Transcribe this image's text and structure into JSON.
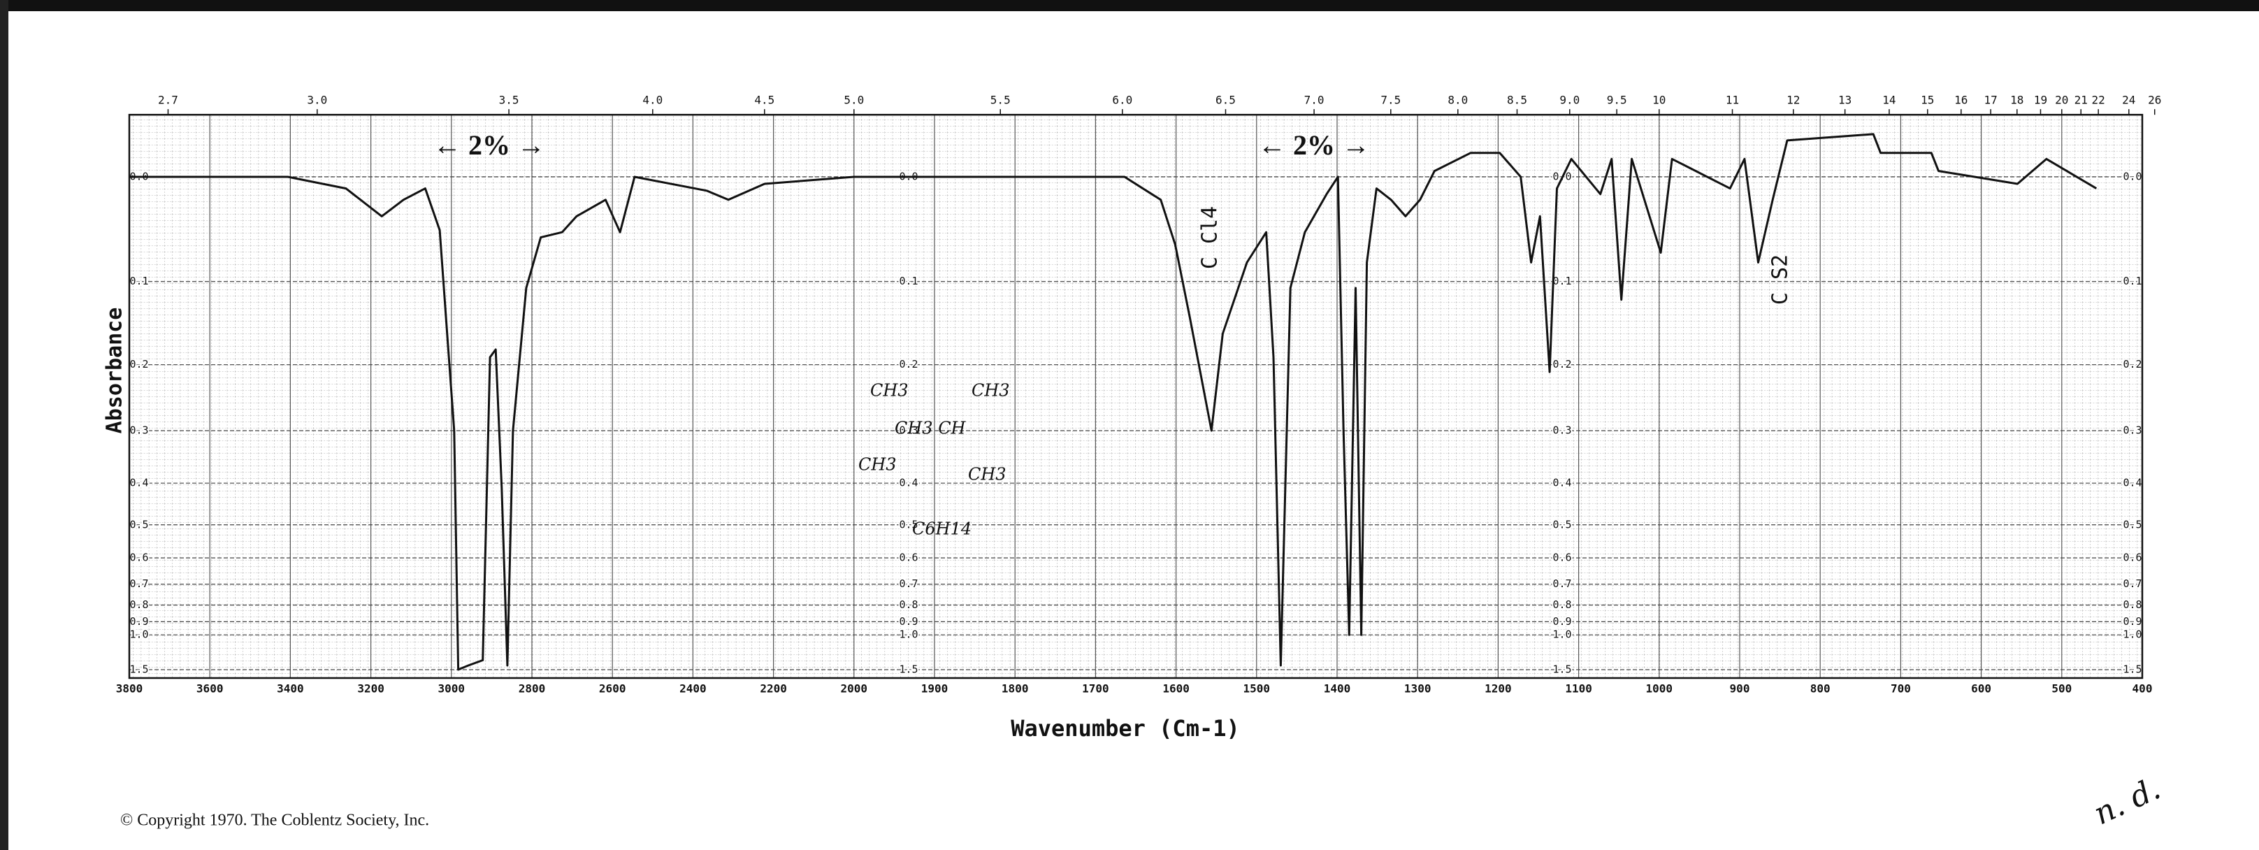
{
  "chart_data": {
    "type": "line",
    "y_label": "Absorbance",
    "x_label": "Wavenumber (Cm-1)",
    "y_scale": "absorbance",
    "x_scale": "tick-interpolated",
    "grid": true,
    "color": "#111111",
    "xlim": [
      3800,
      400
    ],
    "xticks": [
      3800,
      3600,
      3400,
      3200,
      3000,
      2800,
      2600,
      2400,
      2200,
      2000,
      1900,
      1800,
      1700,
      1600,
      1500,
      1400,
      1300,
      1200,
      1100,
      1000,
      900,
      800,
      700,
      600,
      500,
      400
    ],
    "x2ticks": [
      2.7,
      {
        "value": 3,
        "label": "3.0"
      },
      3.5,
      {
        "value": 4,
        "label": "4.0"
      },
      4.5,
      {
        "value": 5,
        "label": "5.0"
      },
      5.5,
      {
        "value": 6,
        "label": "6.0"
      },
      6.5,
      {
        "value": 7,
        "label": "7.0"
      },
      7.5,
      {
        "value": 8,
        "label": "8.0"
      },
      8.5,
      {
        "value": 9,
        "label": "9.0"
      },
      9.5,
      10,
      11,
      12,
      13,
      14,
      15,
      16,
      17,
      18,
      19,
      20,
      21,
      22,
      24,
      26
    ],
    "ylim": [
      -0.05,
      1.5
    ],
    "yticks": [
      {
        "value": 0,
        "label": "0.0"
      },
      0.1,
      0.2,
      0.3,
      0.4,
      0.5,
      0.6,
      0.7,
      0.8,
      0.9,
      {
        "value": 1,
        "label": "1.0"
      },
      1.5
    ],
    "x": [
      3800,
      3406,
      3262,
      3173,
      3119,
      3065,
      3029,
      3011,
      2993,
      2983,
      2958,
      2922,
      2904,
      2890,
      2875,
      2861,
      2847,
      2814,
      2778,
      2725,
      2689,
      2617,
      2581,
      2545,
      2366,
      2312,
      2222,
      2000,
      1968,
      1807,
      1664,
      1619,
      1601,
      1583,
      1556,
      1542,
      1512,
      1488,
      1479,
      1470,
      1458,
      1440,
      1413,
      1399,
      1392,
      1385,
      1377,
      1370,
      1363,
      1351,
      1333,
      1315,
      1297,
      1279,
      1234,
      1198,
      1172,
      1159,
      1148,
      1136,
      1127,
      1109,
      1073,
      1059,
      1047,
      1034,
      998,
      984,
      912,
      894,
      877,
      859,
      841,
      734,
      725,
      662,
      653,
      555,
      519,
      457
    ],
    "values": [
      0.0,
      0.0,
      0.01,
      0.035,
      0.02,
      0.01,
      0.048,
      0.157,
      0.3,
      1.5,
      1.4,
      1.3,
      0.19,
      0.18,
      0.41,
      1.4,
      0.3,
      0.107,
      0.055,
      0.05,
      0.035,
      0.02,
      0.05,
      0.0,
      0.012,
      0.02,
      0.006,
      0.0,
      0.0,
      0.0,
      0.0,
      0.02,
      0.062,
      0.14,
      0.3,
      0.16,
      0.08,
      0.05,
      0.19,
      1.4,
      0.107,
      0.05,
      0.015,
      0.0,
      0.3,
      1.0,
      0.107,
      1.0,
      0.08,
      0.01,
      0.02,
      0.035,
      0.02,
      -0.005,
      -0.02,
      -0.02,
      0.0,
      0.08,
      0.035,
      0.21,
      0.01,
      -0.015,
      0.015,
      -0.015,
      0.12,
      -0.015,
      0.07,
      -0.015,
      0.01,
      -0.015,
      0.08,
      0.02,
      -0.03,
      -0.035,
      -0.02,
      -0.02,
      -0.005,
      0.006,
      -0.015,
      0.01
    ],
    "annotations": [
      "← 2% →",
      "← 2% →",
      "C Cl4",
      "C S2",
      "CH3",
      "CH3",
      "CH3 CH",
      "CH3",
      "CH3",
      "C6H14"
    ],
    "copyright": "© Copyright 1970.  The Coblentz Society, Inc.",
    "note": "n. d."
  }
}
